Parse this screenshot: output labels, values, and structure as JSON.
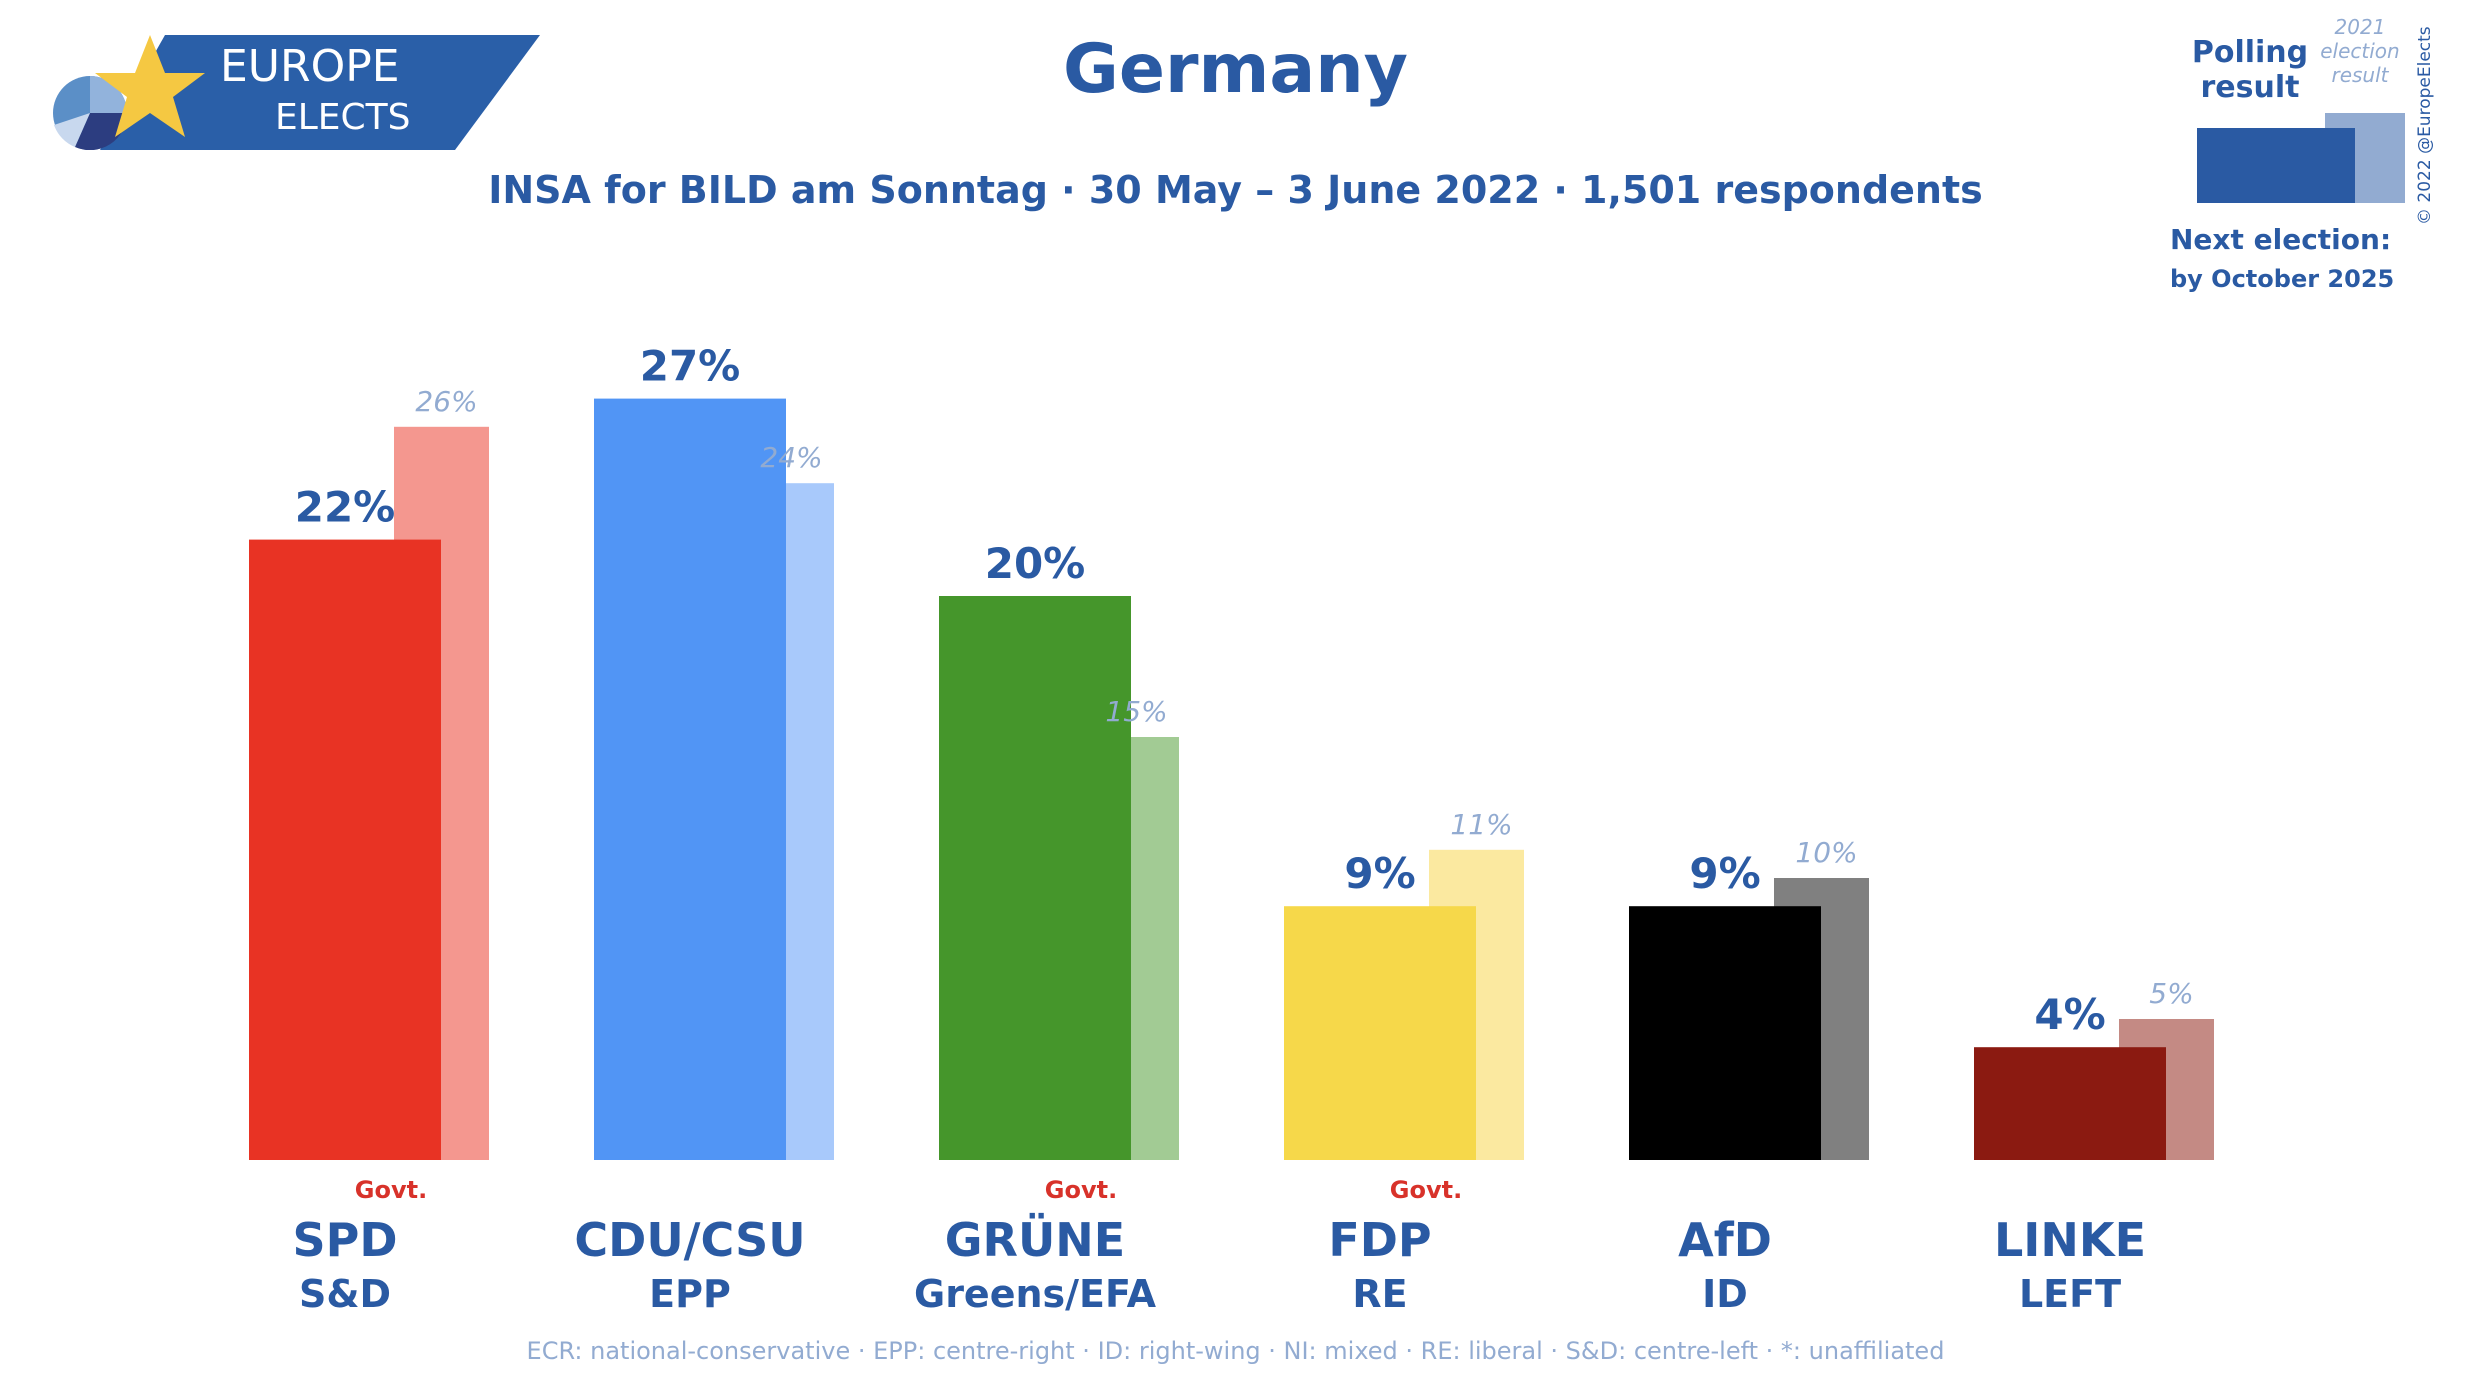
{
  "logo": {
    "line1": "EUROPE",
    "line2": "ELECTS"
  },
  "title": "Germany",
  "subtitle": "INSA for BILD am Sonntag · 30 May – 3 June 2022 · 1,501 respondents",
  "legend": {
    "polling": "Polling result",
    "election": "2021 election result",
    "copyright": "© 2022 @EuropeElects",
    "next_election_label": "Next election:",
    "next_election_value": "by October 2025",
    "polling_color": "#2a5aa3",
    "election_color": "#92abd1"
  },
  "footnote": "ECR: national-conservative · EPP: centre-right · ID: right-wing · NI: mixed · RE: liberal · S&D: centre-left · *: unaffiliated",
  "chart_data": {
    "type": "bar",
    "categories": [
      "SPD",
      "CDU/CSU",
      "GRÜNE",
      "FDP",
      "AfD",
      "LINKE"
    ],
    "groups": [
      "S&D",
      "EPP",
      "Greens/EFA",
      "RE",
      "ID",
      "LEFT"
    ],
    "govt": [
      true,
      false,
      true,
      true,
      false,
      false
    ],
    "govt_label": "Govt.",
    "series": [
      {
        "name": "Polling result",
        "values": [
          22,
          27,
          20,
          9,
          9,
          4
        ],
        "labels": [
          "22%",
          "27%",
          "20%",
          "9%",
          "9%",
          "4%"
        ],
        "colors": [
          "#e83324",
          "#5195f5",
          "#45962b",
          "#f6d84a",
          "#000000",
          "#8b1a11"
        ]
      },
      {
        "name": "2021 election result",
        "values": [
          26,
          24,
          15,
          11,
          10,
          5
        ],
        "labels": [
          "26%",
          "24%",
          "15%",
          "11%",
          "10%",
          "5%"
        ],
        "colors": [
          "#f4978f",
          "#a8c9fb",
          "#a2cb94",
          "#fbe9a0",
          "#808080",
          "#c48a84"
        ]
      }
    ],
    "ylim": [
      0,
      30
    ],
    "grid": false
  }
}
